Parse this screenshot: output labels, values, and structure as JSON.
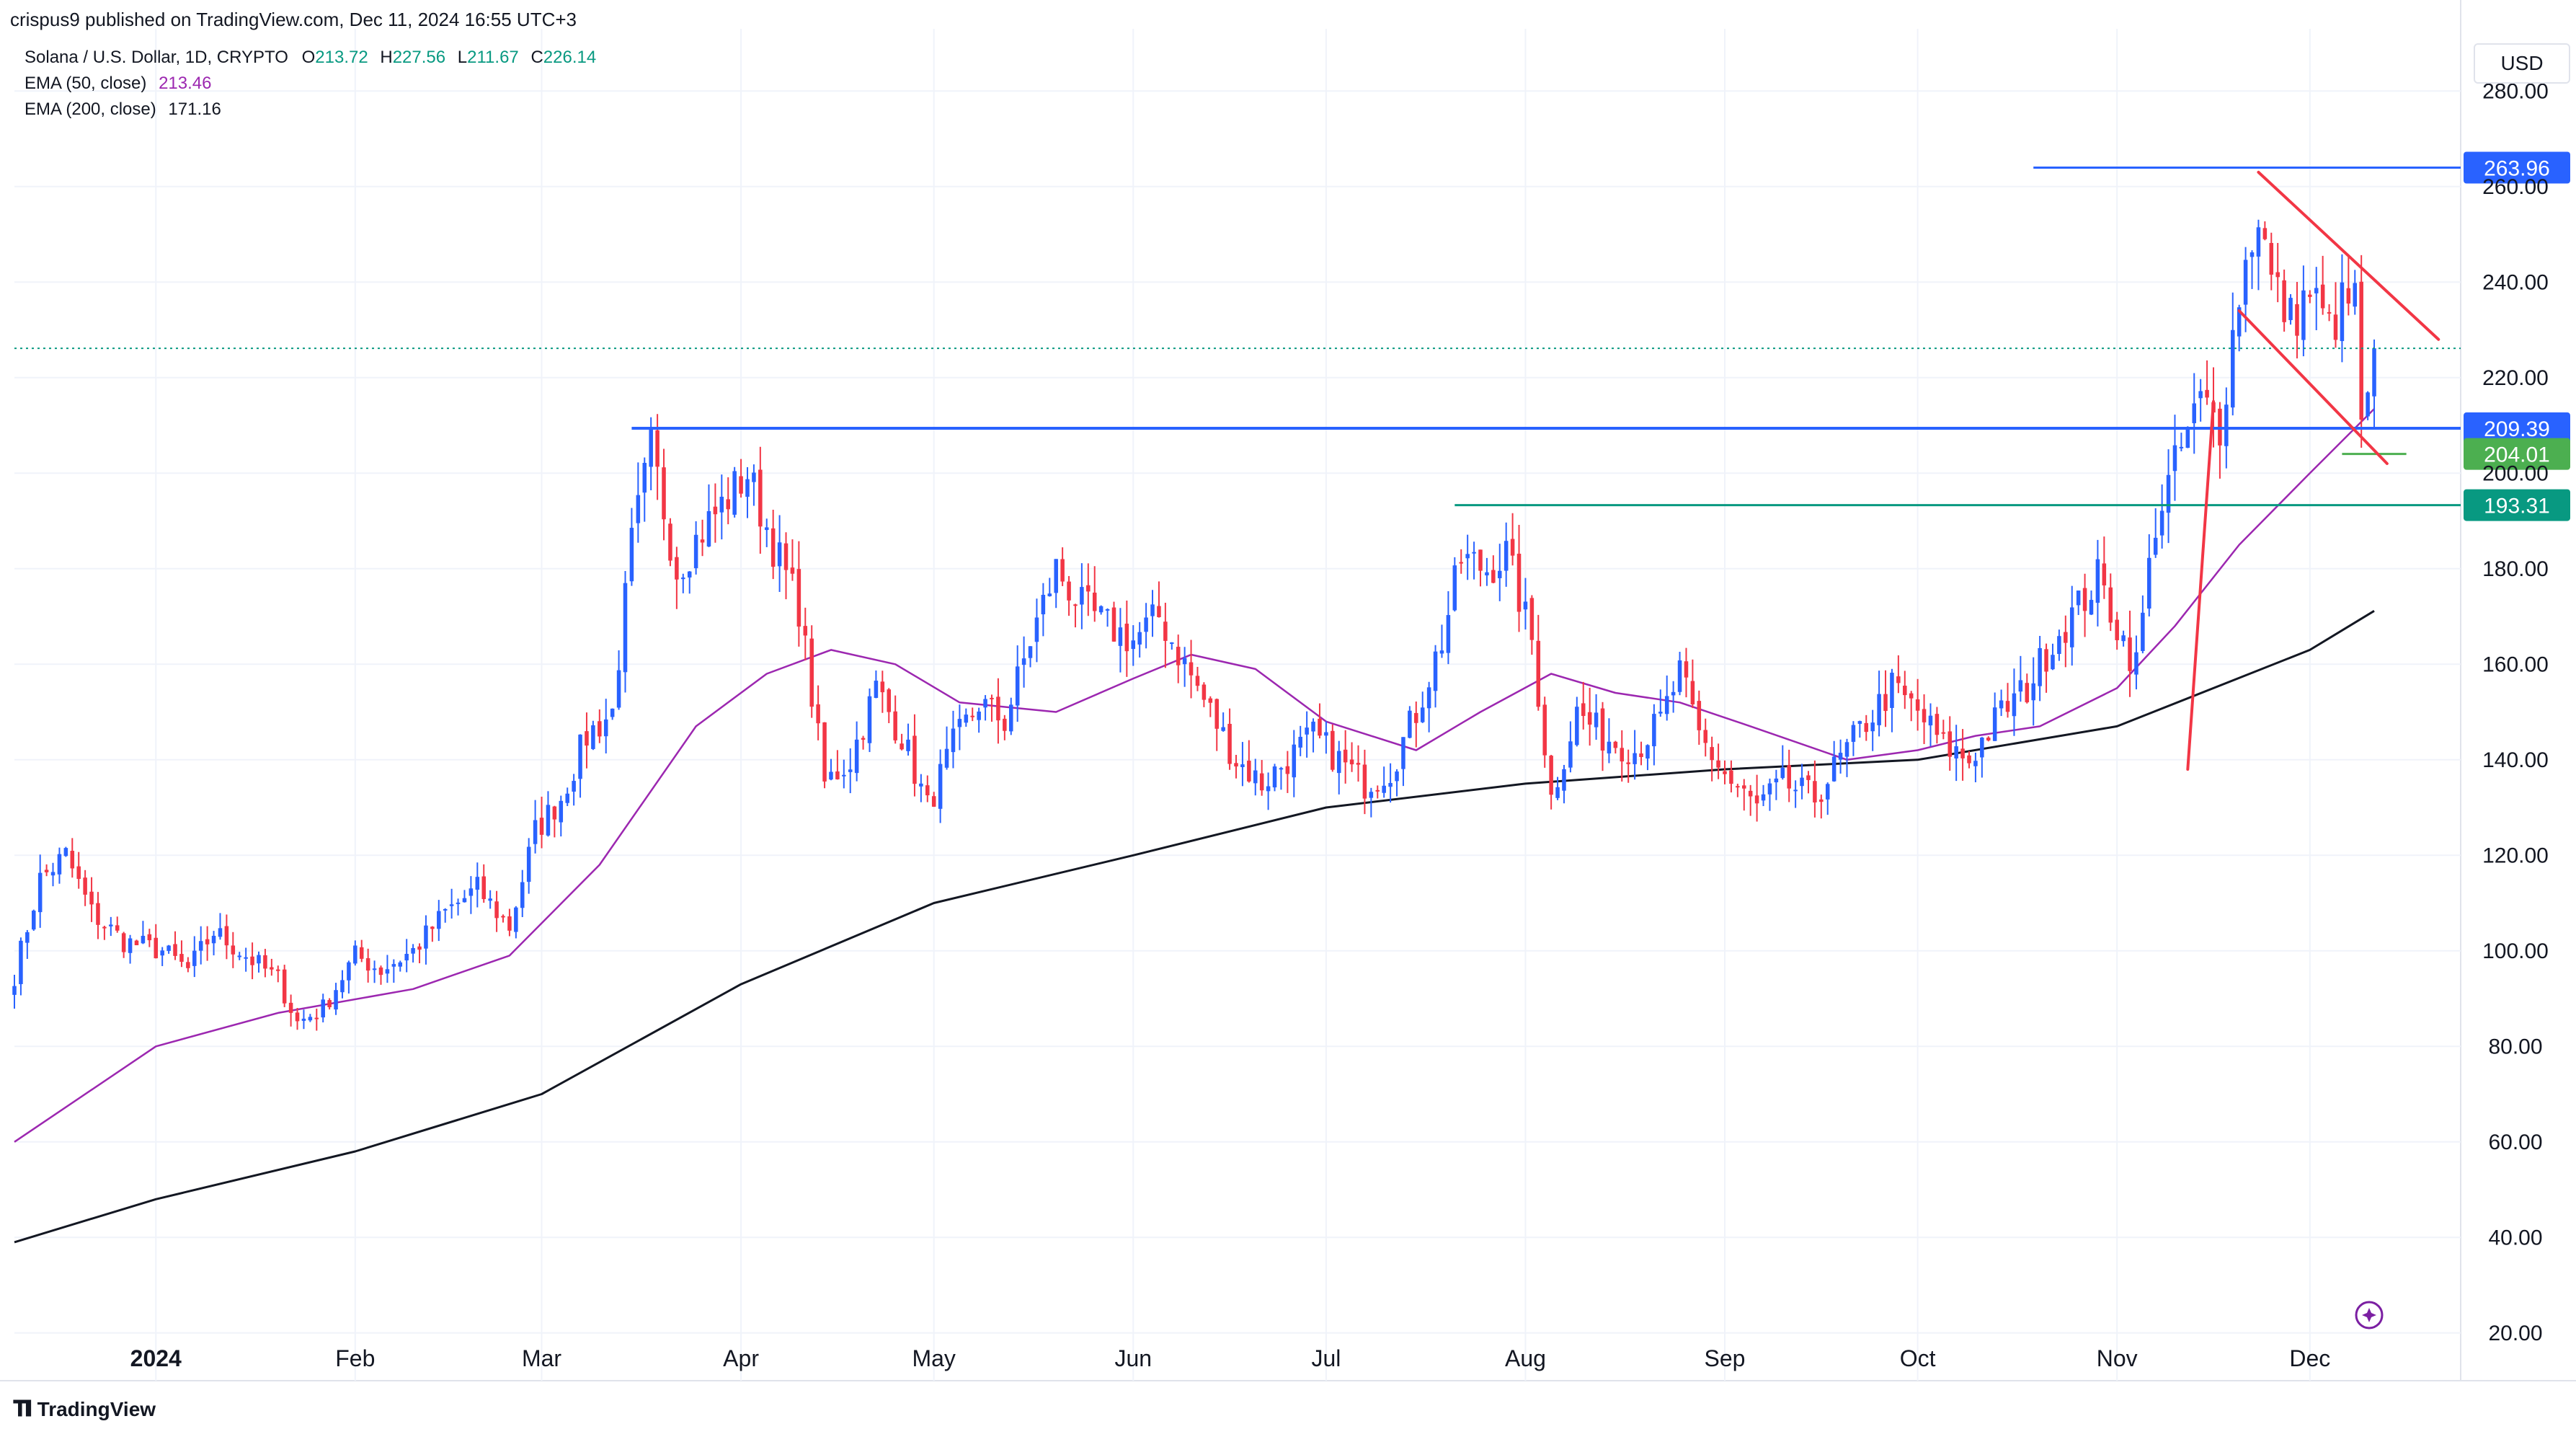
{
  "header": {
    "published_by": "crispus9 published on TradingView.com, Dec 11, 2024 16:55 UTC+3"
  },
  "legend": {
    "symbol": "Solana / U.S. Dollar, 1D, CRYPTO",
    "ohlc": [
      {
        "k": "O",
        "v": "213.72"
      },
      {
        "k": "H",
        "v": "227.56"
      },
      {
        "k": "L",
        "v": "211.67"
      },
      {
        "k": "C",
        "v": "226.14"
      }
    ],
    "ema50_label": "EMA (50, close)",
    "ema50_value": "213.46",
    "ema200_label": "EMA (200, close)",
    "ema200_value": "171.16"
  },
  "currency": "USD",
  "footer": {
    "brand": "TradingView"
  },
  "colors": {
    "up": "#2962ff",
    "down": "#f23645",
    "ema50": "#9c27b0",
    "ema200": "#131722",
    "grid": "#f0f3fa",
    "axis_text": "#131722",
    "last_price": "#089981"
  },
  "chart_data": {
    "type": "candlestick",
    "ylim": [
      10,
      290
    ],
    "y_ticks": [
      20,
      40,
      60,
      80,
      100,
      120,
      140,
      160,
      180,
      200,
      220,
      240,
      260,
      280
    ],
    "x_range": [
      "2023-12-10",
      "2024-12-24"
    ],
    "x_ticks": [
      {
        "label": "2024",
        "date": "2024-01-01",
        "bold": true
      },
      {
        "label": "Feb",
        "date": "2024-02-01"
      },
      {
        "label": "Mar",
        "date": "2024-03-01"
      },
      {
        "label": "Apr",
        "date": "2024-04-01"
      },
      {
        "label": "May",
        "date": "2024-05-01"
      },
      {
        "label": "Jun",
        "date": "2024-06-01"
      },
      {
        "label": "Jul",
        "date": "2024-07-01"
      },
      {
        "label": "Aug",
        "date": "2024-08-01"
      },
      {
        "label": "Sep",
        "date": "2024-09-01"
      },
      {
        "label": "Oct",
        "date": "2024-10-01"
      },
      {
        "label": "Nov",
        "date": "2024-11-01"
      },
      {
        "label": "Dec",
        "date": "2024-12-01"
      }
    ],
    "price_close_path": [
      {
        "date": "2023-12-10",
        "close": 95
      },
      {
        "date": "2023-12-14",
        "close": 115
      },
      {
        "date": "2023-12-18",
        "close": 120
      },
      {
        "date": "2023-12-22",
        "close": 108
      },
      {
        "date": "2023-12-27",
        "close": 102
      },
      {
        "date": "2024-01-02",
        "close": 100
      },
      {
        "date": "2024-01-06",
        "close": 96
      },
      {
        "date": "2024-01-10",
        "close": 104
      },
      {
        "date": "2024-01-16",
        "close": 98
      },
      {
        "date": "2024-01-20",
        "close": 94
      },
      {
        "date": "2024-01-23",
        "close": 85
      },
      {
        "date": "2024-01-27",
        "close": 88
      },
      {
        "date": "2024-02-01",
        "close": 99
      },
      {
        "date": "2024-02-05",
        "close": 96
      },
      {
        "date": "2024-02-10",
        "close": 100
      },
      {
        "date": "2024-02-15",
        "close": 108
      },
      {
        "date": "2024-02-20",
        "close": 113
      },
      {
        "date": "2024-02-25",
        "close": 105
      },
      {
        "date": "2024-02-29",
        "close": 125
      },
      {
        "date": "2024-03-04",
        "close": 132
      },
      {
        "date": "2024-03-08",
        "close": 145
      },
      {
        "date": "2024-03-12",
        "close": 150
      },
      {
        "date": "2024-03-15",
        "close": 185
      },
      {
        "date": "2024-03-18",
        "close": 205
      },
      {
        "date": "2024-03-22",
        "close": 180
      },
      {
        "date": "2024-03-26",
        "close": 188
      },
      {
        "date": "2024-03-30",
        "close": 195
      },
      {
        "date": "2024-04-02",
        "close": 200
      },
      {
        "date": "2024-04-06",
        "close": 185
      },
      {
        "date": "2024-04-10",
        "close": 172
      },
      {
        "date": "2024-04-14",
        "close": 135
      },
      {
        "date": "2024-04-18",
        "close": 140
      },
      {
        "date": "2024-04-22",
        "close": 155
      },
      {
        "date": "2024-04-26",
        "close": 145
      },
      {
        "date": "2024-04-30",
        "close": 130
      },
      {
        "date": "2024-05-04",
        "close": 143
      },
      {
        "date": "2024-05-08",
        "close": 152
      },
      {
        "date": "2024-05-12",
        "close": 148
      },
      {
        "date": "2024-05-16",
        "close": 165
      },
      {
        "date": "2024-05-20",
        "close": 180
      },
      {
        "date": "2024-05-24",
        "close": 172
      },
      {
        "date": "2024-05-28",
        "close": 168
      },
      {
        "date": "2024-06-01",
        "close": 165
      },
      {
        "date": "2024-06-05",
        "close": 170
      },
      {
        "date": "2024-06-09",
        "close": 160
      },
      {
        "date": "2024-06-13",
        "close": 150
      },
      {
        "date": "2024-06-17",
        "close": 140
      },
      {
        "date": "2024-06-21",
        "close": 135
      },
      {
        "date": "2024-06-25",
        "close": 140
      },
      {
        "date": "2024-06-29",
        "close": 145
      },
      {
        "date": "2024-07-03",
        "close": 140
      },
      {
        "date": "2024-07-07",
        "close": 135
      },
      {
        "date": "2024-07-11",
        "close": 138
      },
      {
        "date": "2024-07-15",
        "close": 150
      },
      {
        "date": "2024-07-19",
        "close": 165
      },
      {
        "date": "2024-07-22",
        "close": 182
      },
      {
        "date": "2024-07-26",
        "close": 180
      },
      {
        "date": "2024-07-29",
        "close": 183
      },
      {
        "date": "2024-08-02",
        "close": 165
      },
      {
        "date": "2024-08-05",
        "close": 132
      },
      {
        "date": "2024-08-09",
        "close": 150
      },
      {
        "date": "2024-08-13",
        "close": 145
      },
      {
        "date": "2024-08-18",
        "close": 142
      },
      {
        "date": "2024-08-22",
        "close": 148
      },
      {
        "date": "2024-08-25",
        "close": 158
      },
      {
        "date": "2024-08-28",
        "close": 145
      },
      {
        "date": "2024-09-02",
        "close": 135
      },
      {
        "date": "2024-09-06",
        "close": 130
      },
      {
        "date": "2024-09-10",
        "close": 135
      },
      {
        "date": "2024-09-15",
        "close": 132
      },
      {
        "date": "2024-09-19",
        "close": 140
      },
      {
        "date": "2024-09-23",
        "close": 148
      },
      {
        "date": "2024-09-27",
        "close": 155
      },
      {
        "date": "2024-10-01",
        "close": 150
      },
      {
        "date": "2024-10-05",
        "close": 143
      },
      {
        "date": "2024-10-09",
        "close": 140
      },
      {
        "date": "2024-10-14",
        "close": 150
      },
      {
        "date": "2024-10-18",
        "close": 155
      },
      {
        "date": "2024-10-22",
        "close": 165
      },
      {
        "date": "2024-10-26",
        "close": 172
      },
      {
        "date": "2024-10-29",
        "close": 178
      },
      {
        "date": "2024-11-02",
        "close": 165
      },
      {
        "date": "2024-11-04",
        "close": 160
      },
      {
        "date": "2024-11-07",
        "close": 190
      },
      {
        "date": "2024-11-11",
        "close": 205
      },
      {
        "date": "2024-11-14",
        "close": 215
      },
      {
        "date": "2024-11-17",
        "close": 210
      },
      {
        "date": "2024-11-20",
        "close": 238
      },
      {
        "date": "2024-11-23",
        "close": 255
      },
      {
        "date": "2024-11-25",
        "close": 240
      },
      {
        "date": "2024-11-28",
        "close": 232
      },
      {
        "date": "2024-12-01",
        "close": 238
      },
      {
        "date": "2024-12-04",
        "close": 230
      },
      {
        "date": "2024-12-06",
        "close": 235
      },
      {
        "date": "2024-12-08",
        "close": 236
      },
      {
        "date": "2024-12-09",
        "close": 212
      },
      {
        "date": "2024-12-10",
        "close": 213
      },
      {
        "date": "2024-12-11",
        "close": 226
      }
    ],
    "ema50_path": [
      {
        "date": "2023-12-10",
        "v": 60
      },
      {
        "date": "2024-01-01",
        "v": 80
      },
      {
        "date": "2024-01-20",
        "v": 87
      },
      {
        "date": "2024-02-10",
        "v": 92
      },
      {
        "date": "2024-02-25",
        "v": 99
      },
      {
        "date": "2024-03-10",
        "v": 118
      },
      {
        "date": "2024-03-25",
        "v": 147
      },
      {
        "date": "2024-04-05",
        "v": 158
      },
      {
        "date": "2024-04-15",
        "v": 163
      },
      {
        "date": "2024-04-25",
        "v": 160
      },
      {
        "date": "2024-05-05",
        "v": 152
      },
      {
        "date": "2024-05-20",
        "v": 150
      },
      {
        "date": "2024-06-01",
        "v": 157
      },
      {
        "date": "2024-06-10",
        "v": 162
      },
      {
        "date": "2024-06-20",
        "v": 159
      },
      {
        "date": "2024-07-01",
        "v": 148
      },
      {
        "date": "2024-07-15",
        "v": 142
      },
      {
        "date": "2024-07-25",
        "v": 150
      },
      {
        "date": "2024-08-05",
        "v": 158
      },
      {
        "date": "2024-08-15",
        "v": 154
      },
      {
        "date": "2024-08-25",
        "v": 152
      },
      {
        "date": "2024-09-05",
        "v": 147
      },
      {
        "date": "2024-09-20",
        "v": 140
      },
      {
        "date": "2024-10-01",
        "v": 142
      },
      {
        "date": "2024-10-10",
        "v": 145
      },
      {
        "date": "2024-10-20",
        "v": 147
      },
      {
        "date": "2024-11-01",
        "v": 155
      },
      {
        "date": "2024-11-10",
        "v": 168
      },
      {
        "date": "2024-11-20",
        "v": 185
      },
      {
        "date": "2024-12-01",
        "v": 200
      },
      {
        "date": "2024-12-11",
        "v": 213.46
      }
    ],
    "ema200_path": [
      {
        "date": "2023-12-10",
        "v": 39
      },
      {
        "date": "2024-01-01",
        "v": 48
      },
      {
        "date": "2024-02-01",
        "v": 58
      },
      {
        "date": "2024-03-01",
        "v": 70
      },
      {
        "date": "2024-04-01",
        "v": 93
      },
      {
        "date": "2024-05-01",
        "v": 110
      },
      {
        "date": "2024-06-01",
        "v": 120
      },
      {
        "date": "2024-07-01",
        "v": 130
      },
      {
        "date": "2024-08-01",
        "v": 135
      },
      {
        "date": "2024-09-01",
        "v": 138
      },
      {
        "date": "2024-10-01",
        "v": 140
      },
      {
        "date": "2024-11-01",
        "v": 147
      },
      {
        "date": "2024-12-01",
        "v": 163
      },
      {
        "date": "2024-12-11",
        "v": 171.16
      }
    ],
    "horizontal_levels": [
      {
        "label": "263.96",
        "value": 263.96,
        "from": "2024-10-19",
        "color": "#2962ff",
        "label_bg": "#2962ff"
      },
      {
        "label": "209.39",
        "value": 209.39,
        "from": "2024-03-15",
        "color": "#2962ff",
        "label_bg": "#2962ff",
        "thick": true
      },
      {
        "label": "204.01",
        "value": 204.01,
        "from": "2024-12-06",
        "color": "#4caf50",
        "label_bg": "#4caf50"
      },
      {
        "label": "193.31",
        "value": 193.31,
        "from": "2024-07-21",
        "color": "#089981",
        "label_bg": "#089981"
      }
    ],
    "last_price": 226.14,
    "trendlines": [
      {
        "from": {
          "date": "2024-11-12",
          "v": 138
        },
        "to": {
          "date": "2024-11-16",
          "v": 215
        },
        "color": "#f23645"
      },
      {
        "from": {
          "date": "2024-11-23",
          "v": 263
        },
        "to": {
          "date": "2024-12-21",
          "v": 228
        },
        "color": "#f23645"
      },
      {
        "from": {
          "date": "2024-11-20",
          "v": 234
        },
        "to": {
          "date": "2024-12-13",
          "v": 202
        },
        "color": "#f23645"
      }
    ]
  }
}
